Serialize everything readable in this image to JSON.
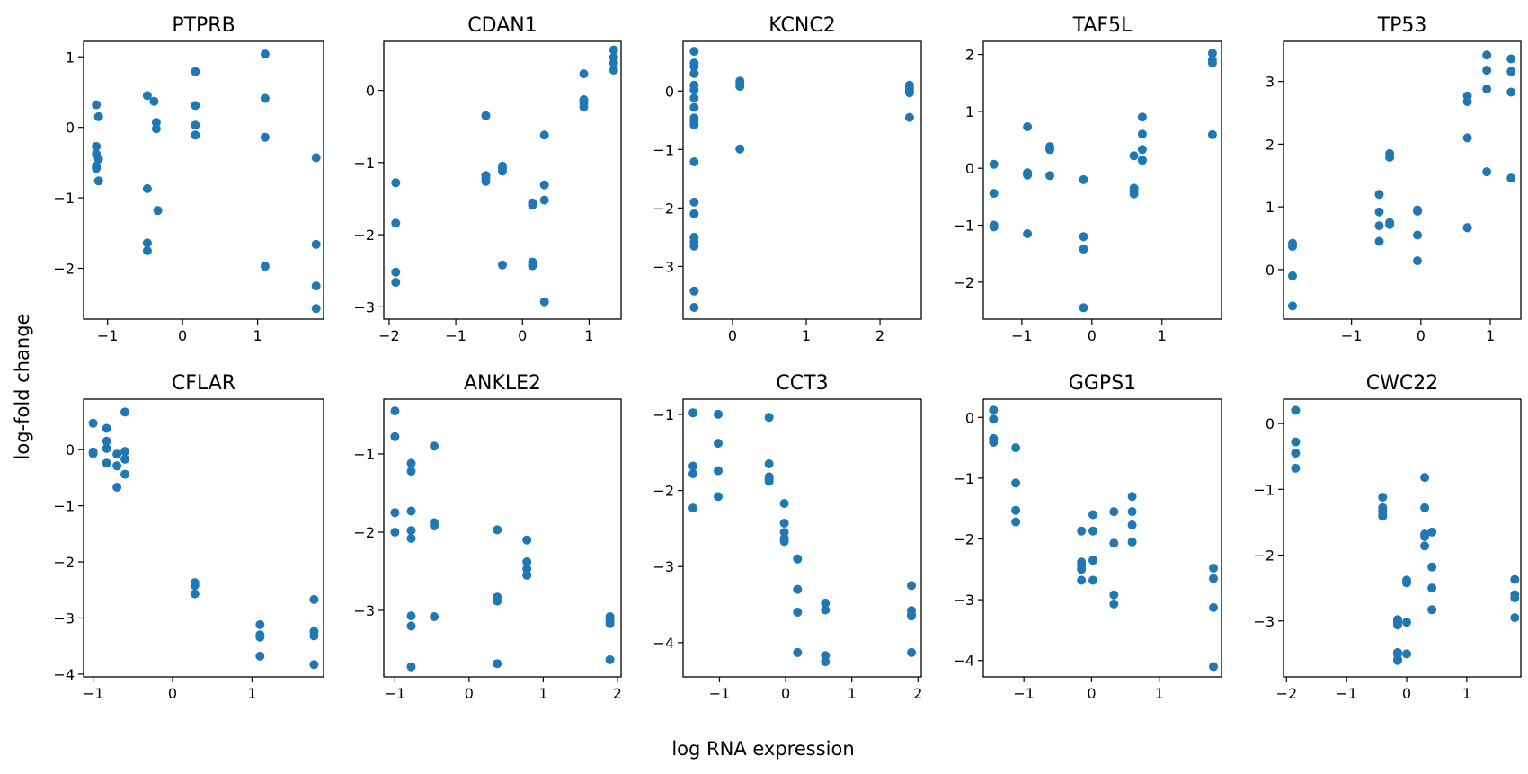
{
  "figure": {
    "xlabel": "log RNA expression",
    "ylabel": "log-fold change",
    "marker_color": "#1f77b4"
  },
  "chart_data": [
    {
      "type": "scatter",
      "title": "PTPRB",
      "xticks": [
        -1,
        0,
        1
      ],
      "yticks": [
        1,
        0,
        -1,
        -2
      ],
      "xlim": [
        -1.32,
        1.88
      ],
      "ylim": [
        -2.72,
        1.22
      ],
      "x": [
        -1.15,
        -1.15,
        -1.15,
        -1.15,
        -1.15,
        -1.12,
        -1.12,
        -1.12,
        -0.47,
        -0.47,
        -0.47,
        -0.47,
        -0.38,
        -0.35,
        -0.35,
        -0.33,
        0.17,
        0.17,
        0.17,
        0.17,
        1.1,
        1.1,
        1.1,
        1.1,
        1.78,
        1.78,
        1.78,
        1.78
      ],
      "y": [
        0.32,
        -0.27,
        -0.38,
        -0.55,
        -0.58,
        0.15,
        -0.45,
        -0.76,
        0.45,
        -0.87,
        -1.64,
        -1.75,
        0.37,
        -0.02,
        0.07,
        -1.18,
        0.79,
        0.31,
        0.03,
        -0.11,
        1.04,
        0.41,
        -0.14,
        -1.97,
        -0.43,
        -1.66,
        -2.25,
        -2.57
      ]
    },
    {
      "type": "scatter",
      "title": "CDAN1",
      "xticks": [
        -2,
        -1,
        0,
        1
      ],
      "yticks": [
        0,
        -1,
        -2,
        -3
      ],
      "xlim": [
        -2.08,
        1.48
      ],
      "ylim": [
        -3.17,
        0.68
      ],
      "x": [
        -1.9,
        -1.9,
        -1.9,
        -1.9,
        -0.55,
        -0.55,
        -0.55,
        -0.55,
        -0.3,
        -0.3,
        -0.3,
        -0.3,
        0.15,
        0.15,
        0.15,
        0.15,
        0.33,
        0.33,
        0.33,
        0.33,
        0.92,
        0.92,
        0.92,
        0.92,
        1.37,
        1.37,
        1.37,
        1.37
      ],
      "y": [
        -1.28,
        -1.84,
        -2.52,
        -2.66,
        -0.35,
        -1.18,
        -1.22,
        -1.26,
        -1.05,
        -1.08,
        -1.12,
        -2.42,
        -1.56,
        -1.59,
        -2.38,
        -2.43,
        -0.62,
        -1.31,
        -1.52,
        -2.93,
        0.23,
        -0.13,
        -0.17,
        -0.23,
        0.56,
        0.46,
        0.38,
        0.28
      ]
    },
    {
      "type": "scatter",
      "title": "KCNC2",
      "xticks": [
        0,
        1,
        2
      ],
      "yticks": [
        0,
        -1,
        -2,
        -3
      ],
      "xlim": [
        -0.67,
        2.56
      ],
      "ylim": [
        -3.9,
        0.85
      ],
      "x": [
        -0.52,
        -0.52,
        -0.52,
        -0.52,
        -0.52,
        -0.52,
        -0.52,
        -0.52,
        -0.52,
        -0.52,
        -0.52,
        -0.52,
        -0.52,
        -0.52,
        -0.52,
        -0.52,
        -0.52,
        -0.52,
        -0.52,
        0.1,
        0.1,
        0.1,
        0.1,
        2.4,
        2.4,
        2.4,
        2.4,
        2.4
      ],
      "y": [
        0.68,
        0.48,
        0.42,
        0.3,
        0.1,
        0.02,
        -0.12,
        -0.28,
        -0.46,
        -0.52,
        -0.58,
        -1.21,
        -1.9,
        -2.1,
        -2.5,
        -2.58,
        -2.65,
        -3.42,
        -3.7,
        0.17,
        0.12,
        0.08,
        -0.99,
        0.1,
        0.05,
        0.0,
        -0.03,
        -0.45
      ]
    },
    {
      "type": "scatter",
      "title": "TAF5L",
      "xticks": [
        -1,
        0,
        1
      ],
      "yticks": [
        2,
        1,
        0,
        -1,
        -2
      ],
      "xlim": [
        -1.55,
        1.85
      ],
      "ylim": [
        -2.65,
        2.23
      ],
      "x": [
        -1.4,
        -1.4,
        -1.4,
        -1.4,
        -0.92,
        -0.92,
        -0.92,
        -0.92,
        -0.6,
        -0.6,
        -0.6,
        -0.12,
        -0.12,
        -0.12,
        -0.12,
        0.6,
        0.6,
        0.6,
        0.6,
        0.72,
        0.72,
        0.72,
        0.72,
        0.72,
        1.72,
        1.72,
        1.72,
        1.72
      ],
      "y": [
        0.07,
        -0.44,
        -1.0,
        -1.03,
        0.73,
        -0.08,
        -0.12,
        -1.15,
        0.38,
        0.33,
        -0.13,
        -0.2,
        -1.2,
        -1.42,
        -2.45,
        0.22,
        -0.35,
        -0.4,
        -0.45,
        0.9,
        0.6,
        0.33,
        0.14,
        0.14,
        2.02,
        1.9,
        1.85,
        0.59
      ]
    },
    {
      "type": "scatter",
      "title": "TP53",
      "xticks": [
        -1,
        0,
        1
      ],
      "yticks": [
        3,
        2,
        1,
        0
      ],
      "xlim": [
        -1.98,
        1.44
      ],
      "ylim": [
        -0.79,
        3.64
      ],
      "x": [
        -1.85,
        -1.85,
        -1.85,
        -1.85,
        -0.6,
        -0.6,
        -0.6,
        -0.6,
        -0.45,
        -0.45,
        -0.45,
        -0.45,
        -0.05,
        -0.05,
        -0.05,
        -0.05,
        0.67,
        0.67,
        0.67,
        0.67,
        0.67,
        0.95,
        0.95,
        0.95,
        0.95,
        1.3,
        1.3,
        1.3,
        1.3
      ],
      "y": [
        0.42,
        0.37,
        -0.1,
        -0.58,
        1.2,
        0.92,
        0.7,
        0.45,
        1.85,
        1.79,
        0.75,
        0.72,
        0.95,
        0.93,
        0.55,
        0.14,
        2.77,
        2.68,
        2.1,
        0.67,
        0.67,
        3.42,
        3.18,
        2.88,
        1.56,
        3.36,
        3.16,
        2.83,
        1.46
      ]
    },
    {
      "type": "scatter",
      "title": "CFLAR",
      "xticks": [
        -1,
        0,
        1
      ],
      "yticks": [
        0,
        -1,
        -2,
        -3,
        -4
      ],
      "xlim": [
        -1.12,
        1.9
      ],
      "ylim": [
        -4.05,
        0.9
      ],
      "x": [
        -1.0,
        -1.0,
        -1.0,
        -0.83,
        -0.83,
        -0.83,
        -0.83,
        -0.7,
        -0.7,
        -0.7,
        -0.6,
        -0.6,
        -0.6,
        -0.6,
        0.28,
        0.28,
        0.28,
        1.1,
        1.1,
        1.1,
        1.1,
        1.78,
        1.78,
        1.78,
        1.78
      ],
      "y": [
        0.47,
        -0.04,
        -0.07,
        0.38,
        0.15,
        0.02,
        -0.24,
        -0.08,
        -0.29,
        -0.67,
        0.67,
        -0.03,
        -0.17,
        -0.44,
        -2.37,
        -2.42,
        -2.57,
        -3.12,
        -3.3,
        -3.34,
        -3.68,
        -2.67,
        -3.24,
        -3.32,
        -3.83
      ]
    },
    {
      "type": "scatter",
      "title": "ANKLE2",
      "xticks": [
        -1,
        0,
        1,
        2
      ],
      "yticks": [
        -1,
        -2,
        -3
      ],
      "xlim": [
        -1.15,
        2.05
      ],
      "ylim": [
        -3.85,
        -0.3
      ],
      "x": [
        -1.0,
        -1.0,
        -1.0,
        -1.0,
        -0.78,
        -0.78,
        -0.78,
        -0.78,
        -0.78,
        -0.78,
        -0.78,
        -0.78,
        -0.47,
        -0.47,
        -0.47,
        -0.47,
        0.38,
        0.38,
        0.38,
        0.38,
        0.78,
        0.78,
        0.78,
        0.78,
        0.78,
        1.9,
        1.9,
        1.9,
        1.9
      ],
      "y": [
        -0.45,
        -0.78,
        -1.75,
        -2.0,
        -1.12,
        -1.22,
        -1.73,
        -1.98,
        -2.08,
        -3.07,
        -3.2,
        -3.72,
        -0.9,
        -1.88,
        -1.92,
        -3.08,
        -1.97,
        -2.83,
        -2.88,
        -3.68,
        -2.1,
        -2.38,
        -2.47,
        -2.55,
        -2.55,
        -3.08,
        -3.12,
        -3.17,
        -3.63
      ]
    },
    {
      "type": "scatter",
      "title": "CCT3",
      "xticks": [
        -1,
        0,
        1,
        2
      ],
      "yticks": [
        -1,
        -2,
        -3,
        -4
      ],
      "xlim": [
        -1.55,
        2.05
      ],
      "ylim": [
        -4.45,
        -0.8
      ],
      "x": [
        -1.4,
        -1.4,
        -1.4,
        -1.4,
        -1.02,
        -1.02,
        -1.02,
        -1.02,
        -0.25,
        -0.25,
        -0.25,
        -0.25,
        -0.25,
        -0.02,
        -0.02,
        -0.02,
        -0.02,
        -0.02,
        0.18,
        0.18,
        0.18,
        0.18,
        0.6,
        0.6,
        0.6,
        0.6,
        1.9,
        1.9,
        1.9,
        1.9,
        1.9
      ],
      "y": [
        -0.98,
        -1.68,
        -1.78,
        -2.23,
        -1.0,
        -1.38,
        -1.74,
        -2.08,
        -1.04,
        -1.65,
        -1.82,
        -1.85,
        -1.88,
        -2.17,
        -2.43,
        -2.55,
        -2.63,
        -2.67,
        -2.9,
        -3.3,
        -3.6,
        -4.13,
        -3.48,
        -3.57,
        -4.17,
        -4.25,
        -3.25,
        -3.58,
        -3.63,
        -3.65,
        -4.13
      ]
    },
    {
      "type": "scatter",
      "title": "GGPS1",
      "xticks": [
        -1,
        0,
        1
      ],
      "yticks": [
        0,
        -1,
        -2,
        -3,
        -4
      ],
      "xlim": [
        -1.6,
        1.92
      ],
      "ylim": [
        -4.27,
        0.3
      ],
      "x": [
        -1.45,
        -1.45,
        -1.45,
        -1.45,
        -1.12,
        -1.12,
        -1.12,
        -1.12,
        -0.15,
        -0.15,
        -0.15,
        -0.15,
        -0.15,
        0.02,
        0.02,
        0.02,
        0.02,
        0.33,
        0.33,
        0.33,
        0.33,
        0.6,
        0.6,
        0.6,
        0.6,
        1.8,
        1.8,
        1.8,
        1.8
      ],
      "y": [
        0.12,
        -0.03,
        -0.35,
        -0.41,
        -0.5,
        -1.08,
        -1.53,
        -1.72,
        -1.87,
        -2.38,
        -2.43,
        -2.5,
        -2.68,
        -1.6,
        -1.87,
        -2.35,
        -2.68,
        -1.55,
        -2.07,
        -2.92,
        -3.07,
        -1.3,
        -1.55,
        -1.77,
        -2.05,
        -2.48,
        -2.65,
        -3.13,
        -4.1
      ]
    },
    {
      "type": "scatter",
      "title": "CWC22",
      "xticks": [
        -2,
        -1,
        0,
        1
      ],
      "yticks": [
        0,
        -1,
        -2,
        -3
      ],
      "xlim": [
        -2.05,
        1.9
      ],
      "ylim": [
        -3.85,
        0.37
      ],
      "x": [
        -1.85,
        -1.85,
        -1.85,
        -1.85,
        -0.4,
        -0.4,
        -0.4,
        -0.4,
        -0.4,
        -0.15,
        -0.15,
        -0.15,
        -0.15,
        -0.15,
        -0.15,
        -0.15,
        -0.15,
        0.0,
        0.0,
        0.0,
        0.0,
        0.3,
        0.3,
        0.3,
        0.3,
        0.3,
        0.42,
        0.42,
        0.42,
        0.42,
        1.8,
        1.8,
        1.8,
        1.8
      ],
      "y": [
        0.2,
        -0.28,
        -0.45,
        -0.68,
        -1.12,
        -1.28,
        -1.32,
        -1.38,
        -1.41,
        -2.98,
        -3.0,
        -3.03,
        -3.06,
        -3.48,
        -3.5,
        -3.58,
        -3.6,
        -2.38,
        -2.42,
        -3.02,
        -3.5,
        -0.82,
        -1.28,
        -1.68,
        -1.72,
        -1.86,
        -1.65,
        -2.18,
        -2.5,
        -2.83,
        -2.37,
        -2.6,
        -2.65,
        -2.95
      ]
    }
  ]
}
